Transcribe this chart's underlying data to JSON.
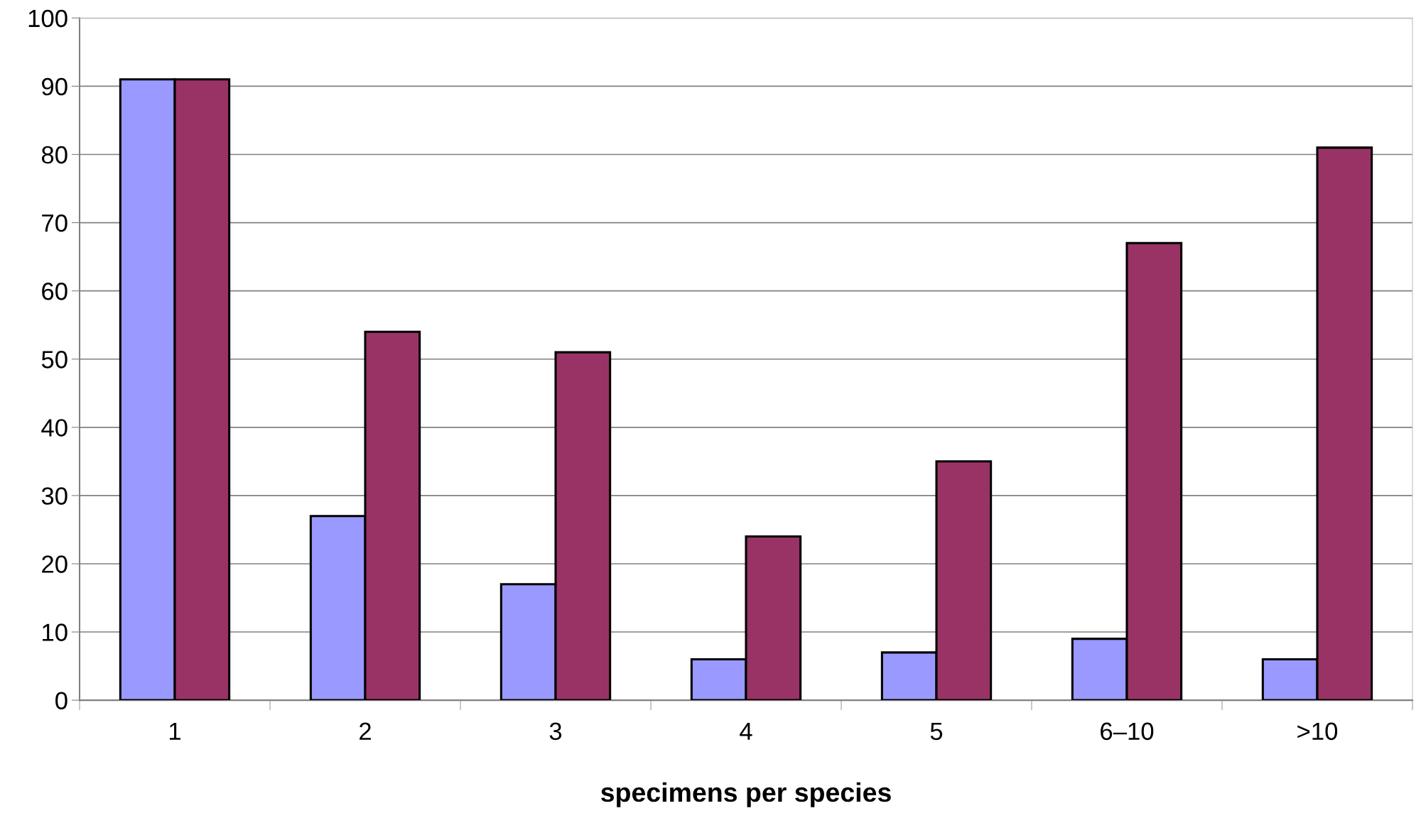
{
  "chart_data": {
    "type": "bar",
    "xlabel": "specimens per species",
    "categories": [
      "1",
      "2",
      "3",
      "4",
      "5",
      "6–10",
      ">10"
    ],
    "series": [
      {
        "color": "#9999ff",
        "values": [
          91,
          27,
          17,
          6,
          7,
          9,
          6
        ]
      },
      {
        "color": "#993366",
        "values": [
          91,
          54,
          51,
          24,
          35,
          67,
          81
        ]
      }
    ],
    "ylim": [
      0,
      100
    ],
    "yticks": [
      0,
      10,
      20,
      30,
      40,
      50,
      60,
      70,
      80,
      90,
      100
    ],
    "grid": "y"
  }
}
